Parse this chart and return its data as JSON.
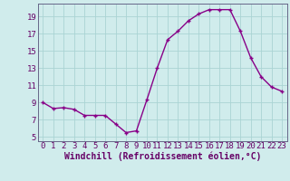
{
  "x": [
    0,
    1,
    2,
    3,
    4,
    5,
    6,
    7,
    8,
    9,
    10,
    11,
    12,
    13,
    14,
    15,
    16,
    17,
    18,
    19,
    20,
    21,
    22,
    23
  ],
  "y": [
    9,
    8.3,
    8.4,
    8.2,
    7.5,
    7.5,
    7.5,
    6.5,
    5.5,
    5.7,
    9.3,
    13,
    16.3,
    17.3,
    18.5,
    19.3,
    19.8,
    19.8,
    19.8,
    17.3,
    14.2,
    12,
    10.8,
    10.3
  ],
  "line_color": "#880088",
  "marker": "+",
  "bg_color": "#d0ecec",
  "grid_color": "#aad4d4",
  "xlabel": "Windchill (Refroidissement éolien,°C)",
  "xlabel_fontsize": 7,
  "ylabel_ticks": [
    5,
    7,
    9,
    11,
    13,
    15,
    17,
    19
  ],
  "xtick_labels": [
    "0",
    "1",
    "2",
    "3",
    "4",
    "5",
    "6",
    "7",
    "8",
    "9",
    "10",
    "11",
    "12",
    "13",
    "14",
    "15",
    "16",
    "17",
    "18",
    "19",
    "20",
    "21",
    "22",
    "23"
  ],
  "ylim": [
    4.5,
    20.5
  ],
  "xlim": [
    -0.5,
    23.5
  ],
  "tick_fontsize": 6.5,
  "linewidth": 1.0,
  "markersize": 3.5
}
